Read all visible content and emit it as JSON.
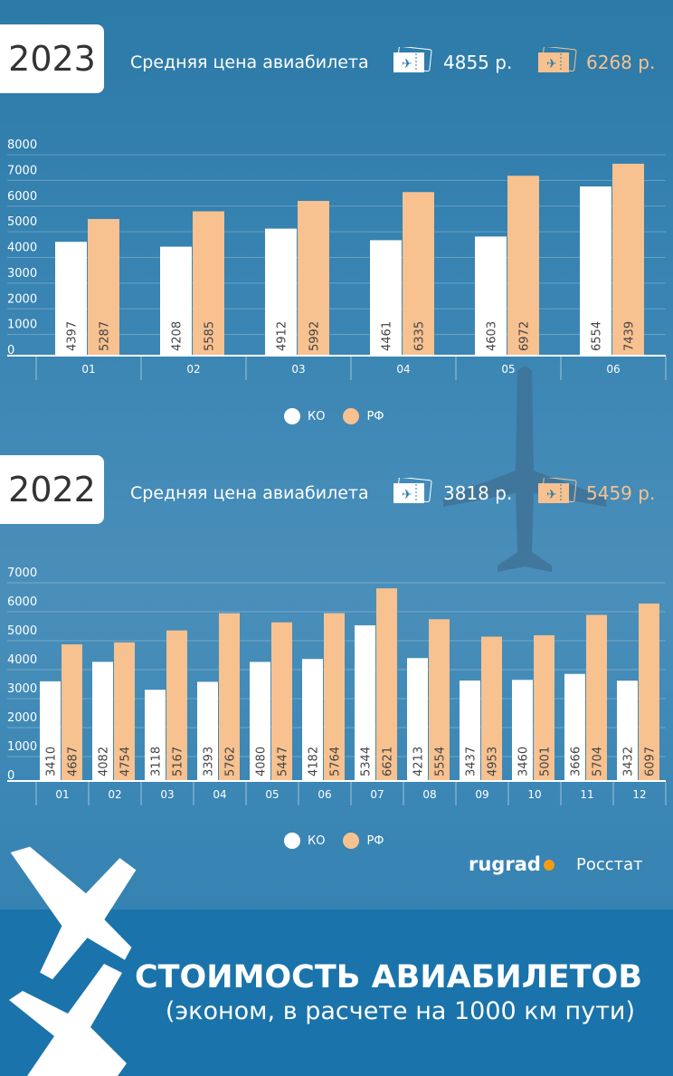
{
  "colors": {
    "ko": "#ffffff",
    "rf": "#f7c190",
    "banner": "#1a73aa"
  },
  "legend": {
    "ko": "КО",
    "rf": "РФ"
  },
  "price_label": "Средняя цена авиабилета",
  "banner": {
    "title": "СТОИМОСТЬ АВИАБИЛЕТОВ",
    "subtitle": "(эконом, в расчете на 1000 км пути)"
  },
  "source": {
    "brand": "rugrad",
    "name": "Росстат"
  },
  "chart_data": [
    {
      "type": "bar",
      "title": "2023",
      "avg_ko": "4855 р.",
      "avg_rf": "6268 р.",
      "categories": [
        "01",
        "02",
        "03",
        "04",
        "05",
        "06"
      ],
      "series": [
        {
          "name": "КО",
          "values": [
            4397,
            4208,
            4912,
            4461,
            4603,
            6554
          ]
        },
        {
          "name": "РФ",
          "values": [
            5287,
            5585,
            5992,
            6335,
            6972,
            7439
          ]
        }
      ],
      "yticks": [
        "0",
        "1000",
        "2000",
        "3000",
        "4000",
        "5000",
        "6000",
        "7000",
        "8000"
      ],
      "ylim": [
        0,
        8000
      ]
    },
    {
      "type": "bar",
      "title": "2022",
      "avg_ko": "3818 р.",
      "avg_rf": "5459 р.",
      "categories": [
        "01",
        "02",
        "03",
        "04",
        "05",
        "06",
        "07",
        "08",
        "09",
        "10",
        "11",
        "12"
      ],
      "series": [
        {
          "name": "КО",
          "values": [
            3410,
            4082,
            3118,
            3393,
            4080,
            4182,
            5344,
            4213,
            3437,
            3460,
            3666,
            3432
          ]
        },
        {
          "name": "РФ",
          "values": [
            4687,
            4754,
            5167,
            5762,
            5447,
            5764,
            6621,
            5554,
            4953,
            5001,
            5704,
            6097
          ]
        }
      ],
      "yticks": [
        "0",
        "1000",
        "2000",
        "3000",
        "4000",
        "5000",
        "6000",
        "7000"
      ],
      "ylim": [
        0,
        7000
      ]
    }
  ]
}
